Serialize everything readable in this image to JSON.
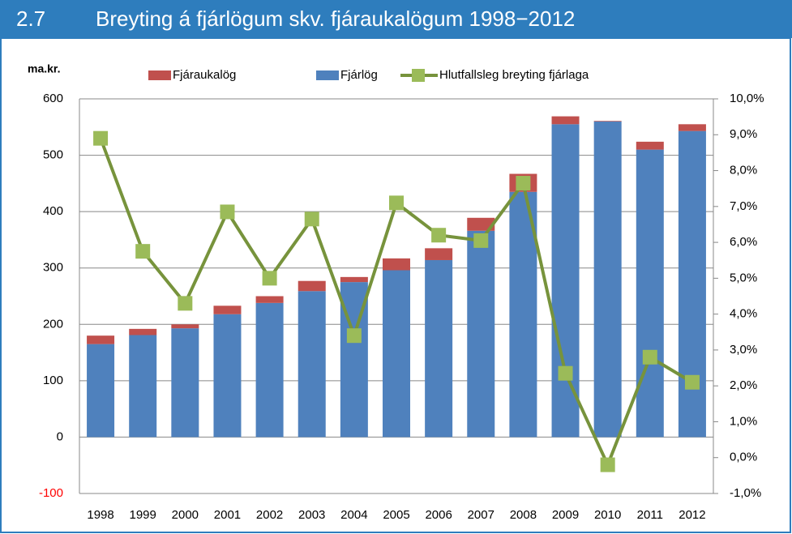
{
  "chart_data": {
    "type": "bar",
    "figure_number": "2.7",
    "title": "Breyting á fjárlögum skv. fjáraukalögum 1998−2012",
    "ylabel": "ma.kr.",
    "categories": [
      "1998",
      "1999",
      "2000",
      "2001",
      "2002",
      "2003",
      "2004",
      "2005",
      "2006",
      "2007",
      "2008",
      "2009",
      "2010",
      "2011",
      "2012"
    ],
    "series": [
      {
        "name": "Fjáraukalög",
        "kind": "bar",
        "color": "#c0504d",
        "values": [
          15,
          11,
          7,
          15,
          12,
          18,
          9,
          21,
          21,
          23,
          32,
          14,
          1,
          14,
          12
        ]
      },
      {
        "name": "Fjárlög",
        "kind": "bar",
        "color": "#4f81bd",
        "values": [
          165,
          181,
          193,
          218,
          238,
          259,
          275,
          296,
          314,
          366,
          435,
          555,
          560,
          510,
          543
        ]
      },
      {
        "name": "Hlutfallsleg breyting fjárlaga",
        "kind": "line",
        "axis": "y2",
        "color": "#77933c",
        "marker_color": "#9bbb59",
        "values": [
          8.9,
          5.75,
          4.3,
          6.85,
          5.0,
          6.65,
          3.4,
          7.1,
          6.2,
          6.05,
          7.65,
          2.35,
          -0.2,
          2.8,
          2.1
        ]
      }
    ],
    "stacked": true,
    "ylim": [
      -100,
      600
    ],
    "yticks": [
      -100,
      0,
      100,
      200,
      300,
      400,
      500,
      600
    ],
    "negative_tick_color": "#ff0000",
    "y2lim": [
      -1,
      10
    ],
    "y2ticks": [
      {
        "value": -1,
        "label": "-1,0%"
      },
      {
        "value": 0,
        "label": "0,0%"
      },
      {
        "value": 1,
        "label": "1,0%"
      },
      {
        "value": 2,
        "label": "2,0%"
      },
      {
        "value": 3,
        "label": "3,0%"
      },
      {
        "value": 4,
        "label": "4,0%"
      },
      {
        "value": 5,
        "label": "5,0%"
      },
      {
        "value": 6,
        "label": "6,0%"
      },
      {
        "value": 7,
        "label": "7,0%"
      },
      {
        "value": 8,
        "label": "8,0%"
      },
      {
        "value": 9,
        "label": "9,0%"
      },
      {
        "value": 10,
        "label": "10,0%"
      }
    ],
    "grid": true,
    "legend": "top"
  }
}
